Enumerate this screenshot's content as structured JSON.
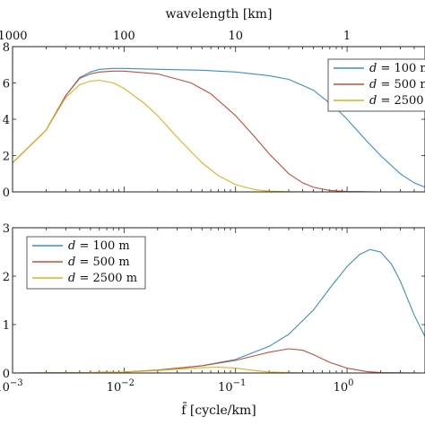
{
  "chart_data": [
    {
      "type": "line",
      "xscale": "log",
      "xlim": [
        0.001,
        5
      ],
      "ylim": [
        0,
        8
      ],
      "xlabel": "",
      "ylabel": "",
      "top_axis": {
        "label": "wavelength [km]",
        "ticks": [
          {
            "label": "1000",
            "frequency": 0.001
          },
          {
            "label": "100",
            "frequency": 0.01
          },
          {
            "label": "10",
            "frequency": 0.1
          },
          {
            "label": "1",
            "frequency": 1
          }
        ]
      },
      "y_ticks": [
        0,
        2,
        4,
        6,
        8
      ],
      "legend_position": "upper right (clipped)",
      "series": [
        {
          "name": "d = 100 m",
          "color": "#3b8fc4",
          "x": [
            0.001,
            0.002,
            0.003,
            0.004,
            0.005,
            0.006,
            0.008,
            0.01,
            0.02,
            0.05,
            0.1,
            0.2,
            0.3,
            0.5,
            0.8,
            1,
            1.5,
            2,
            3,
            4,
            5
          ],
          "y": [
            1.6,
            3.4,
            5.3,
            6.3,
            6.6,
            6.75,
            6.8,
            6.8,
            6.75,
            6.7,
            6.6,
            6.4,
            6.2,
            5.6,
            4.6,
            4.0,
            2.8,
            2.0,
            1.0,
            0.5,
            0.25
          ]
        },
        {
          "name": "d = 500 m",
          "color": "#c0503a",
          "x": [
            0.001,
            0.002,
            0.003,
            0.004,
            0.005,
            0.006,
            0.008,
            0.01,
            0.02,
            0.04,
            0.06,
            0.1,
            0.15,
            0.2,
            0.3,
            0.4,
            0.5,
            0.7,
            1,
            2,
            5
          ],
          "y": [
            1.6,
            3.4,
            5.3,
            6.25,
            6.5,
            6.6,
            6.65,
            6.65,
            6.5,
            6.0,
            5.4,
            4.2,
            3.0,
            2.1,
            1.0,
            0.5,
            0.25,
            0.08,
            0.02,
            0,
            0
          ]
        },
        {
          "name": "d = 2500 m",
          "color": "#e0b020",
          "x": [
            0.001,
            0.002,
            0.003,
            0.004,
            0.005,
            0.006,
            0.008,
            0.01,
            0.015,
            0.02,
            0.03,
            0.05,
            0.07,
            0.1,
            0.15,
            0.2,
            0.3,
            0.5,
            1,
            5
          ],
          "y": [
            1.6,
            3.4,
            5.2,
            5.9,
            6.1,
            6.15,
            6.0,
            5.7,
            4.9,
            4.2,
            3.0,
            1.6,
            0.9,
            0.4,
            0.12,
            0.04,
            0.01,
            0,
            0,
            0
          ]
        }
      ]
    },
    {
      "type": "line",
      "xscale": "log",
      "xlim": [
        0.001,
        5
      ],
      "ylim": [
        0,
        3
      ],
      "xlabel": "f̄ [cycle/km]",
      "ylabel": "",
      "x_ticks": [
        {
          "value": 0.001,
          "label": "10",
          "exp": "−3"
        },
        {
          "value": 0.01,
          "label": "10",
          "exp": "−2"
        },
        {
          "value": 0.1,
          "label": "10",
          "exp": "−1"
        },
        {
          "value": 1,
          "label": "10",
          "exp": "0"
        }
      ],
      "y_ticks": [
        0,
        1,
        2,
        3
      ],
      "legend_position": "upper left",
      "series": [
        {
          "name": "d = 100 m",
          "color": "#3b8fc4",
          "x": [
            0.001,
            0.005,
            0.01,
            0.02,
            0.05,
            0.1,
            0.2,
            0.3,
            0.5,
            0.7,
            1,
            1.3,
            1.6,
            2,
            2.5,
            3,
            4,
            5
          ],
          "y": [
            0,
            0.01,
            0.02,
            0.06,
            0.15,
            0.28,
            0.55,
            0.8,
            1.3,
            1.75,
            2.2,
            2.45,
            2.55,
            2.5,
            2.25,
            1.9,
            1.2,
            0.75
          ]
        },
        {
          "name": "d = 500 m",
          "color": "#c0503a",
          "x": [
            0.001,
            0.005,
            0.01,
            0.02,
            0.05,
            0.1,
            0.15,
            0.2,
            0.3,
            0.4,
            0.5,
            0.7,
            1,
            1.5,
            2,
            5
          ],
          "y": [
            0,
            0.01,
            0.02,
            0.06,
            0.15,
            0.26,
            0.36,
            0.43,
            0.5,
            0.47,
            0.38,
            0.22,
            0.1,
            0.03,
            0.01,
            0
          ]
        },
        {
          "name": "d = 2500 m",
          "color": "#e0b020",
          "x": [
            0.001,
            0.005,
            0.01,
            0.02,
            0.03,
            0.05,
            0.07,
            0.1,
            0.15,
            0.2,
            0.3,
            0.5,
            1,
            5
          ],
          "y": [
            0,
            0.01,
            0.02,
            0.05,
            0.08,
            0.11,
            0.12,
            0.1,
            0.05,
            0.02,
            0.01,
            0,
            0,
            0
          ]
        }
      ]
    }
  ]
}
